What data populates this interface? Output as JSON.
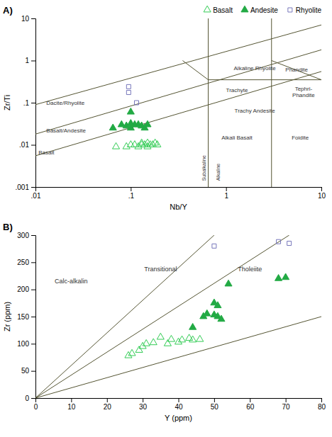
{
  "chart_data": [
    {
      "type": "scatter",
      "title": "A)",
      "xlabel": "Nb/Y",
      "ylabel": "Zr/Ti",
      "log": true,
      "xlim": [
        0.01,
        10
      ],
      "ylim": [
        0.001,
        10
      ],
      "xticks": [
        {
          "value": 0.01,
          "label": ".01"
        },
        {
          "value": 0.1,
          "label": ".1"
        },
        1,
        10
      ],
      "yticks": [
        {
          "value": 0.001,
          "label": ".001"
        },
        {
          "value": 0.01,
          "label": ".01"
        },
        {
          "value": 0.1,
          "label": ".1"
        },
        1,
        10
      ],
      "legend": "upper right",
      "series": [
        {
          "type": "line",
          "color": "#555533",
          "x": [
            0.01,
            10
          ],
          "values": [
            0.0055,
            0.55
          ]
        },
        {
          "type": "line",
          "color": "#555533",
          "x": [
            0.01,
            10
          ],
          "values": [
            0.018,
            1.8
          ]
        },
        {
          "type": "line",
          "color": "#555533",
          "x": [
            0.01,
            10
          ],
          "values": [
            0.09,
            7.0
          ]
        },
        {
          "type": "vline",
          "color": "#555533",
          "x": [
            0.65,
            3.0
          ]
        },
        {
          "type": "line",
          "color": "#555533",
          "x": [
            0.35,
            0.65
          ],
          "values": [
            1.0,
            0.35
          ]
        },
        {
          "type": "line",
          "color": "#555533",
          "x": [
            0.65,
            10
          ],
          "values": [
            0.35,
            0.35
          ]
        },
        {
          "type": "line",
          "color": "#555533",
          "x": [
            3.0,
            10
          ],
          "values": [
            1.0,
            0.35
          ]
        },
        {
          "name": "Basalt",
          "type": "scatter",
          "marker": "triangle-open",
          "color": "#33cc55",
          "x": [
            0.07,
            0.09,
            0.1,
            0.11,
            0.12,
            0.13,
            0.13,
            0.14,
            0.15,
            0.15,
            0.16,
            0.17,
            0.18,
            0.19
          ],
          "values": [
            0.009,
            0.009,
            0.01,
            0.01,
            0.009,
            0.01,
            0.011,
            0.01,
            0.009,
            0.011,
            0.01,
            0.01,
            0.011,
            0.01
          ]
        },
        {
          "name": "Andesite",
          "type": "scatter",
          "marker": "triangle",
          "color": "#22aa44",
          "x": [
            0.065,
            0.08,
            0.09,
            0.1,
            0.1,
            0.11,
            0.12,
            0.13,
            0.14,
            0.15,
            0.1
          ],
          "values": [
            0.025,
            0.03,
            0.028,
            0.032,
            0.025,
            0.03,
            0.03,
            0.028,
            0.025,
            0.03,
            0.06
          ]
        },
        {
          "name": "Rhyolite",
          "type": "scatter",
          "marker": "square-open",
          "color": "#7777bb",
          "x": [
            0.095,
            0.095,
            0.115
          ],
          "values": [
            0.24,
            0.175,
            0.1
          ]
        }
      ],
      "annotations": [
        {
          "text": "Alkaline Rhyolite",
          "x": 2.0,
          "y": 0.65
        },
        {
          "text": "Trachyte",
          "x": 1.3,
          "y": 0.2
        },
        {
          "text": "Phandite",
          "x": 5.5,
          "y": 0.6
        },
        {
          "text": "Tephri-\nPhandite",
          "x": 6.5,
          "y": 0.18
        },
        {
          "text": "Trachy Andesite",
          "x": 2.0,
          "y": 0.065
        },
        {
          "text": "Dacite/Rhyolite",
          "x": 0.013,
          "y": 0.1
        },
        {
          "text": "Basalt/Andesite",
          "x": 0.013,
          "y": 0.022
        },
        {
          "text": "Basalt",
          "x": 0.013,
          "y": 0.0065
        },
        {
          "text": "Alkali Basalt",
          "x": 1.3,
          "y": 0.015
        },
        {
          "text": "Foidite",
          "x": 6.0,
          "y": 0.015
        },
        {
          "text": "Subalkaline",
          "x": 0.59,
          "y": 0.0014
        },
        {
          "text": "Alkaline",
          "x": 0.82,
          "y": 0.0014
        }
      ]
    },
    {
      "type": "scatter",
      "title": "B)",
      "xlabel": "Y (ppm)",
      "ylabel": "Zr (ppm)",
      "xlim": [
        0,
        80
      ],
      "ylim": [
        0,
        300
      ],
      "xticks": [
        0,
        10,
        20,
        30,
        40,
        50,
        60,
        70,
        80
      ],
      "yticks": [
        0,
        50,
        100,
        150,
        200,
        250,
        300
      ],
      "series": [
        {
          "type": "line",
          "color": "#555533",
          "x": [
            0,
            50
          ],
          "values": [
            0,
            300
          ]
        },
        {
          "type": "line",
          "color": "#555533",
          "x": [
            0,
            71
          ],
          "values": [
            0,
            300
          ]
        },
        {
          "type": "line",
          "color": "#555533",
          "x": [
            0,
            80
          ],
          "values": [
            0,
            150
          ]
        },
        {
          "type": "scatter",
          "marker": "triangle-open",
          "color": "#33cc55",
          "x": [
            26,
            27,
            29,
            30,
            31,
            33,
            35,
            37,
            38,
            40,
            41,
            43,
            44,
            46
          ],
          "values": [
            78,
            82,
            88,
            95,
            100,
            102,
            112,
            100,
            108,
            103,
            107,
            110,
            107,
            108
          ]
        },
        {
          "type": "scatter",
          "marker": "triangle",
          "color": "#22aa44",
          "x": [
            44,
            47,
            48,
            50,
            50,
            51,
            51,
            52,
            54,
            68,
            70
          ],
          "values": [
            130,
            150,
            155,
            153,
            175,
            170,
            150,
            145,
            210,
            220,
            222
          ]
        },
        {
          "type": "scatter",
          "marker": "square-open",
          "color": "#7777bb",
          "x": [
            50,
            68,
            71
          ],
          "values": [
            280,
            288,
            285
          ]
        }
      ],
      "annotations": [
        {
          "text": "Calc-alkalin",
          "x": 10,
          "y": 215
        },
        {
          "text": "Transitional",
          "x": 35,
          "y": 238
        },
        {
          "text": "Tholeiite",
          "x": 60,
          "y": 238
        }
      ]
    }
  ]
}
